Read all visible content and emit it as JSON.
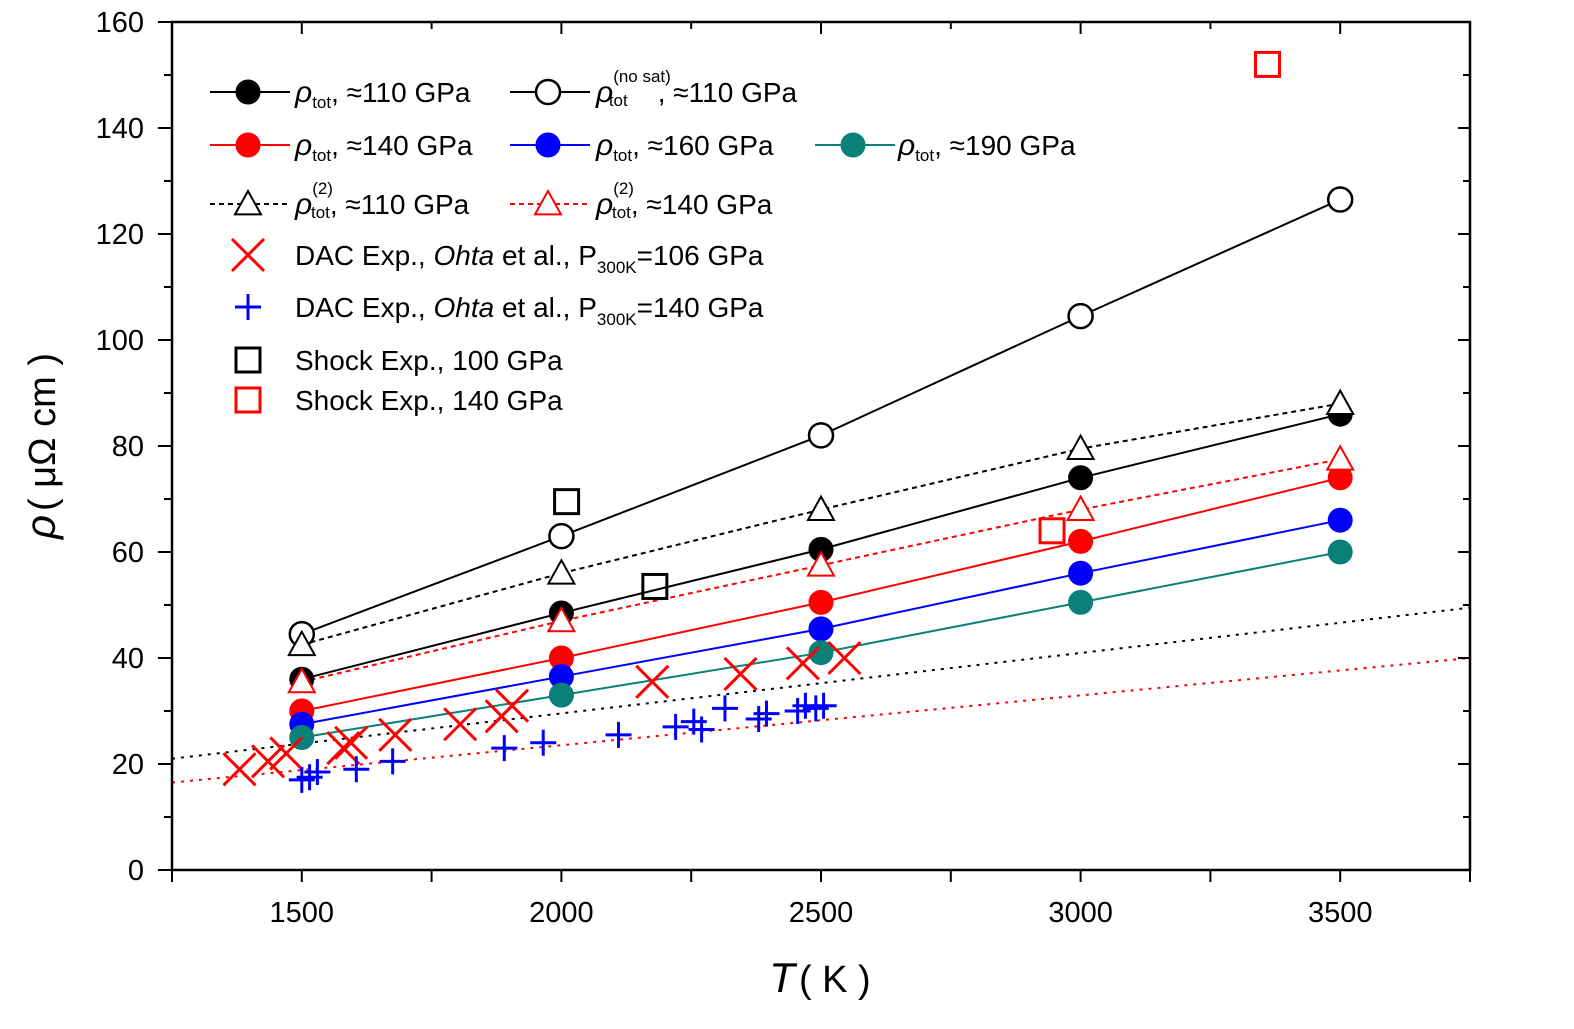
{
  "chart_data": {
    "type": "scatter",
    "xlabel": {
      "var": "T",
      "unit": "( K )"
    },
    "ylabel": {
      "var": "ρ",
      "unit": "( μΩ cm )"
    },
    "xlim": [
      1250,
      3750
    ],
    "ylim": [
      0,
      160
    ],
    "x_ticks": [
      1500,
      2000,
      2500,
      3000,
      3500
    ],
    "y_ticks": [
      0,
      20,
      40,
      60,
      80,
      100,
      120,
      140,
      160
    ],
    "grid": false,
    "legend_position": "top-left",
    "colors": {
      "black": "#000000",
      "red": "#ff0000",
      "blue": "#0000ff",
      "teal": "#0a8078"
    },
    "series": [
      {
        "name": "ρ_tot, ≈110 GPa",
        "marker": "filled-circle",
        "color": "#000000",
        "line": "solid",
        "x": [
          1500,
          2000,
          2500,
          3000,
          3500
        ],
        "y": [
          36,
          48.5,
          60.5,
          74,
          86
        ]
      },
      {
        "name": "ρ_tot^(no sat), ≈110 GPa",
        "marker": "open-circle",
        "color": "#000000",
        "line": "solid",
        "x": [
          1500,
          2000,
          2500,
          3000,
          3500
        ],
        "y": [
          44.5,
          63,
          82,
          104.5,
          126.5
        ]
      },
      {
        "name": "ρ_tot, ≈140 GPa",
        "marker": "filled-circle",
        "color": "#ff0000",
        "line": "solid",
        "x": [
          1500,
          2000,
          2500,
          3000,
          3500
        ],
        "y": [
          30,
          40,
          50.5,
          62,
          74
        ]
      },
      {
        "name": "ρ_tot, ≈160 GPa",
        "marker": "filled-circle",
        "color": "#0000ff",
        "line": "solid",
        "x": [
          1500,
          2000,
          2500,
          3000,
          3500
        ],
        "y": [
          27.5,
          36.5,
          45.5,
          56,
          66
        ]
      },
      {
        "name": "ρ_tot, ≈190 GPa",
        "marker": "filled-circle",
        "color": "#0a8078",
        "line": "solid",
        "x": [
          1500,
          2000,
          2500,
          3000,
          3500
        ],
        "y": [
          25,
          33,
          41,
          50.5,
          60
        ]
      },
      {
        "name": "ρ_tot^(2), ≈110 GPa",
        "marker": "open-triangle",
        "color": "#000000",
        "line": "dashed",
        "x": [
          1500,
          2000,
          2500,
          3000,
          3500
        ],
        "y": [
          42.5,
          56,
          68,
          79.5,
          88
        ]
      },
      {
        "name": "ρ_tot^(2), ≈140 GPa",
        "marker": "open-triangle",
        "color": "#ff0000",
        "line": "dashed",
        "x": [
          1500,
          2000,
          2500,
          3000,
          3500
        ],
        "y": [
          35.5,
          47,
          57.5,
          68,
          77.5
        ]
      },
      {
        "name": "DAC Exp., Ohta et al., P_300K=106 GPa",
        "marker": "x",
        "color": "#ff0000",
        "line": "none",
        "x": [
          1380,
          1435,
          1470,
          1580,
          1595,
          1680,
          1805,
          1885,
          1905,
          2175,
          2345,
          2465,
          2545
        ],
        "y": [
          19,
          20.5,
          22,
          23,
          24,
          25.5,
          27.5,
          29,
          31,
          35.5,
          37,
          39,
          40
        ]
      },
      {
        "name": "DAC Exp., Ohta et al., P_300K=140 GPa",
        "marker": "plus",
        "color": "#0000ff",
        "line": "none",
        "x": [
          1500,
          1515,
          1530,
          1605,
          1675,
          1890,
          1965,
          2110,
          2220,
          2255,
          2270,
          2315,
          2380,
          2395,
          2455,
          2470,
          2490,
          2505
        ],
        "y": [
          17,
          17.5,
          18.5,
          19,
          20.5,
          23,
          24,
          25.5,
          27,
          28,
          26.5,
          30.5,
          28.5,
          29.5,
          30,
          31,
          30.5,
          31
        ]
      },
      {
        "name": "Shock Exp., 100 GPa",
        "marker": "open-square",
        "color": "#000000",
        "line": "none",
        "x": [
          2010,
          2180
        ],
        "y": [
          69.5,
          53.5
        ]
      },
      {
        "name": "Shock Exp., 140 GPa",
        "marker": "open-square",
        "color": "#ff0000",
        "line": "none",
        "x": [
          2945,
          3360
        ],
        "y": [
          64,
          152
        ]
      },
      {
        "name": "",
        "marker": "none",
        "color": "#000000",
        "line": "dotted",
        "x": [
          1250,
          3750
        ],
        "y": [
          21,
          49.5
        ]
      },
      {
        "name": "",
        "marker": "none",
        "color": "#ff0000",
        "line": "dotted",
        "x": [
          1250,
          3750
        ],
        "y": [
          16.5,
          40
        ]
      }
    ],
    "legend": [
      {
        "sym": "ρ",
        "sub": "tot",
        "sup": "",
        "rest": ", ≈110 GPa"
      },
      {
        "sym": "ρ",
        "sub": "tot",
        "sup": "(no sat)",
        "rest": ", ≈110 GPa"
      },
      {
        "sym": "ρ",
        "sub": "tot",
        "sup": "",
        "rest": ", ≈140 GPa"
      },
      {
        "sym": "ρ",
        "sub": "tot",
        "sup": "",
        "rest": ", ≈160 GPa"
      },
      {
        "sym": "ρ",
        "sub": "tot",
        "sup": "",
        "rest": ", ≈190 GPa"
      },
      {
        "sym": "ρ",
        "sub": "tot",
        "sup": "(2)",
        "rest": ", ≈110 GPa"
      },
      {
        "sym": "ρ",
        "sub": "tot",
        "sup": "(2)",
        "rest": ", ≈140 GPa"
      },
      {
        "a": "DAC Exp., ",
        "it": "Ohta",
        "b": " et al., P",
        "sub": "300K",
        "c": "=106 GPa"
      },
      {
        "a": "DAC Exp., ",
        "it": "Ohta",
        "b": " et al., P",
        "sub": "300K",
        "c": "=140 GPa"
      },
      {
        "a": "Shock Exp., 100 GPa"
      },
      {
        "a": "Shock Exp., 140 GPa"
      }
    ]
  }
}
